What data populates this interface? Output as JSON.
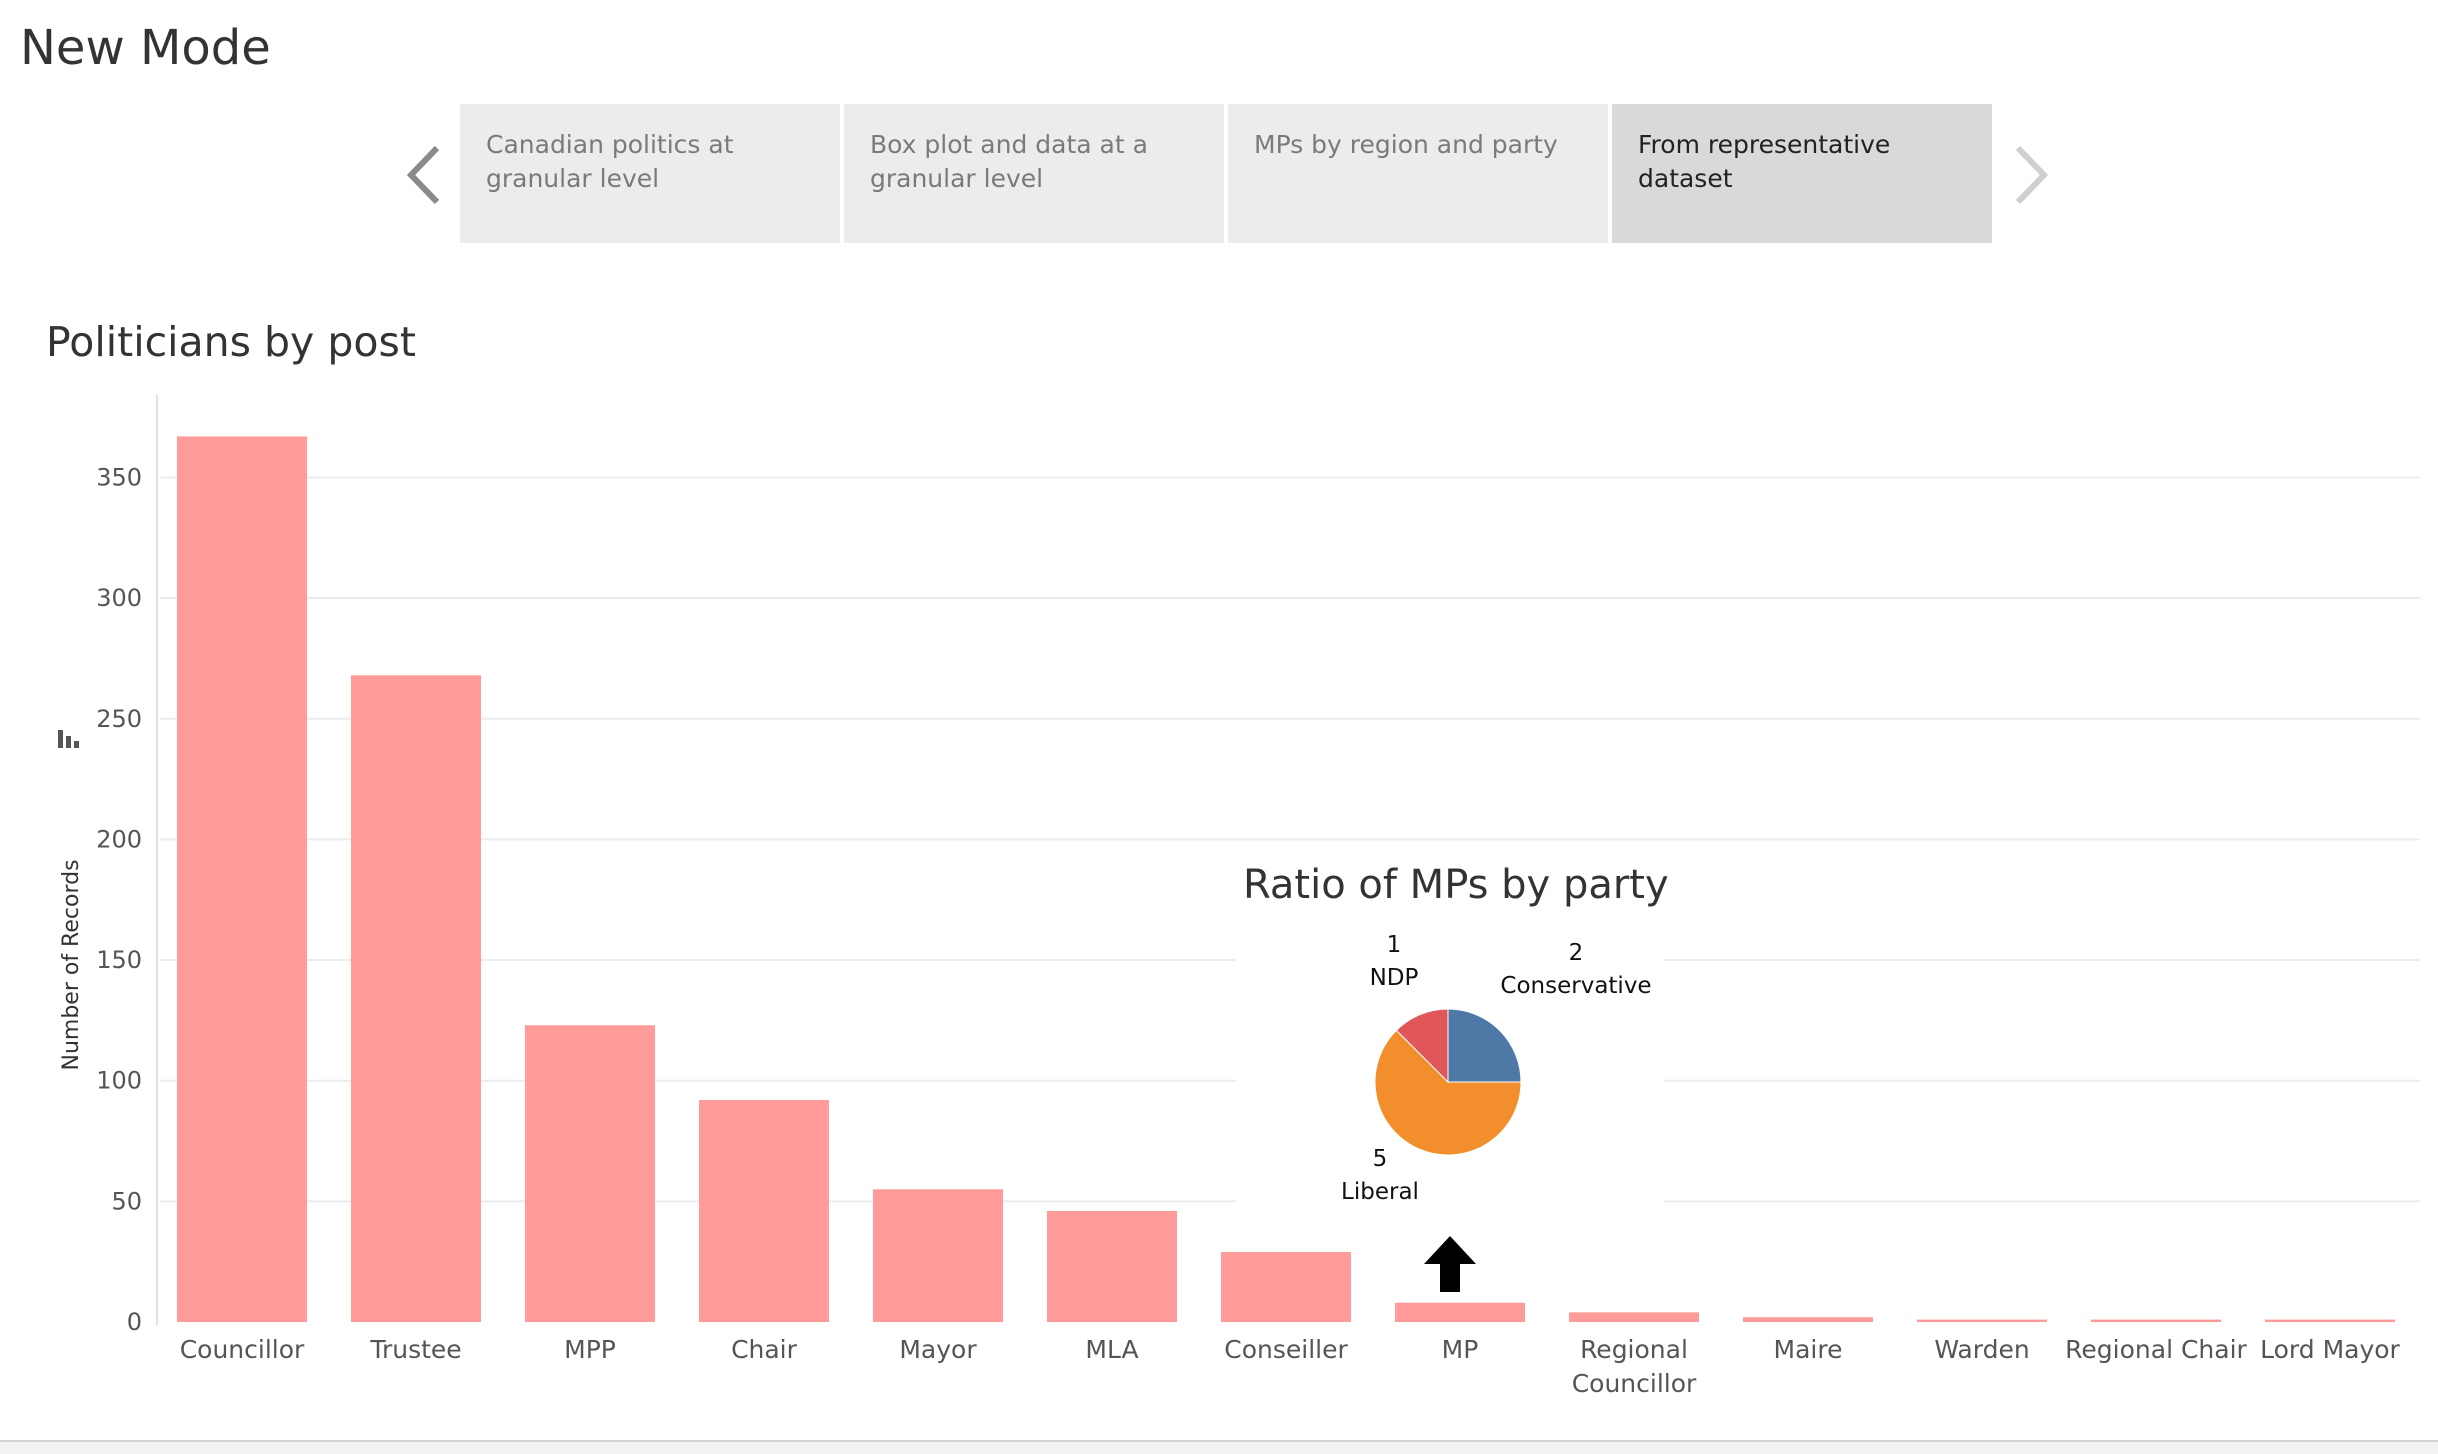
{
  "page": {
    "title": "New Mode"
  },
  "story": {
    "points": [
      {
        "label": "Canadian politics at granular level",
        "active": false
      },
      {
        "label": "Box plot and data at a granular level",
        "active": false
      },
      {
        "label": "MPs by region and party",
        "active": false
      },
      {
        "label": "From representative dataset",
        "active": true
      }
    ],
    "prev_icon": "chevron-left-icon",
    "next_icon": "chevron-right-icon"
  },
  "colors": {
    "bar": "#ff9c99",
    "conservative": "#4e79a7",
    "liberal": "#f28e2b",
    "ndp": "#e15759",
    "gridline": "#ececec"
  },
  "chart_data": [
    {
      "type": "bar",
      "title": "Politicians by post",
      "xlabel": "",
      "ylabel": "Number of Records",
      "categories": [
        "Councillor",
        "Trustee",
        "MPP",
        "Chair",
        "Mayor",
        "MLA",
        "Conseiller",
        "MP",
        "Regional Councillor",
        "Maire",
        "Warden",
        "Regional Chair",
        "Lord Mayor"
      ],
      "values": [
        367,
        268,
        123,
        92,
        55,
        46,
        29,
        8,
        4,
        2,
        1,
        1,
        1
      ],
      "ylim": [
        0,
        380
      ],
      "yticks": [
        0,
        50,
        100,
        150,
        200,
        250,
        300,
        350
      ],
      "grid": true
    },
    {
      "type": "pie",
      "title": "Ratio of MPs by party",
      "slices": [
        {
          "label": "Conservative",
          "value": 2
        },
        {
          "label": "Liberal",
          "value": 5
        },
        {
          "label": "NDP",
          "value": 1
        }
      ]
    }
  ]
}
